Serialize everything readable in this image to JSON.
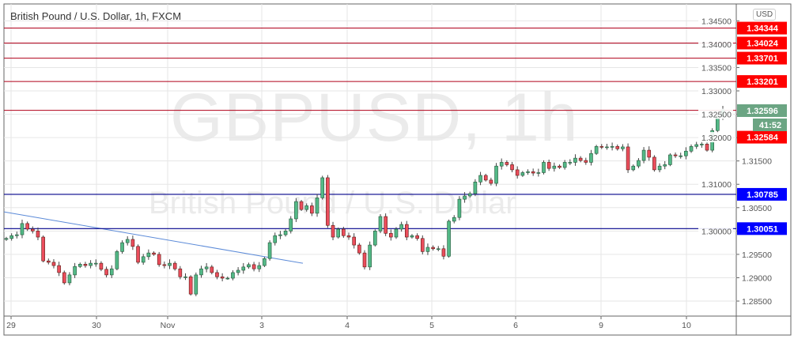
{
  "header": {
    "title": "British Pound / U.S. Dollar, 1h, FXCM",
    "currency_button": "USD"
  },
  "watermark": {
    "symbol": "GBPUSD, 1h",
    "name": "British Pound / U.S. Dollar"
  },
  "chart_data": {
    "type": "candlestick",
    "title": "British Pound / U.S. Dollar, 1h, FXCM",
    "ylim": [
      1.2835,
      1.3475
    ],
    "grid": true,
    "y_ticks": [
      "1.34500",
      "1.34000",
      "1.33500",
      "1.33000",
      "1.32500",
      "1.32000",
      "1.31500",
      "1.31000",
      "1.30500",
      "1.30000",
      "1.29500",
      "1.29000",
      "1.28500"
    ],
    "x_ticks": [
      "29",
      "30",
      "Nov",
      "3",
      "4",
      "5",
      "6",
      "9",
      "10"
    ],
    "first_open": 1.2982,
    "closes": [
      1.2984,
      1.299,
      1.2992,
      1.3016,
      1.3004,
      1.3,
      1.2987,
      1.2936,
      1.2933,
      1.2926,
      1.2911,
      1.2889,
      1.2906,
      1.2924,
      1.2929,
      1.2926,
      1.2931,
      1.2931,
      1.2918,
      1.2906,
      1.2919,
      1.2956,
      1.2975,
      1.2982,
      1.2967,
      1.2933,
      1.2945,
      1.2953,
      1.295,
      1.2928,
      1.2926,
      1.2931,
      1.2919,
      1.2902,
      1.2902,
      1.2865,
      1.2906,
      1.2919,
      1.2923,
      1.2911,
      1.2902,
      1.2899,
      1.2899,
      1.2911,
      1.2916,
      1.2923,
      1.2928,
      1.2919,
      1.2926,
      1.2941,
      1.2975,
      1.299,
      1.2992,
      1.3,
      1.3026,
      1.3063,
      1.3046,
      1.3054,
      1.3038,
      1.3071,
      1.3114,
      1.3012,
      1.2987,
      1.3004,
      1.299,
      1.2987,
      1.297,
      1.2953,
      1.2923,
      1.297,
      1.3,
      1.3031,
      1.2995,
      1.2987,
      1.3004,
      1.3014,
      1.2987,
      1.299,
      1.2984,
      1.2956,
      1.2965,
      1.2962,
      1.2962,
      1.2946,
      1.3021,
      1.3029,
      1.3068,
      1.3075,
      1.308,
      1.3105,
      1.3119,
      1.3109,
      1.3102,
      1.3139,
      1.3147,
      1.3142,
      1.3131,
      1.3119,
      1.3125,
      1.3127,
      1.3124,
      1.3125,
      1.3147,
      1.3134,
      1.3139,
      1.3136,
      1.3147,
      1.3147,
      1.3156,
      1.3151,
      1.3147,
      1.3166,
      1.3181,
      1.318,
      1.318,
      1.3181,
      1.3176,
      1.318,
      1.3131,
      1.3139,
      1.3151,
      1.3173,
      1.3158,
      1.3131,
      1.3139,
      1.3142,
      1.3163,
      1.3161,
      1.3161,
      1.3171,
      1.3181,
      1.3185,
      1.3186,
      1.3173,
      1.3215,
      1.3245,
      1.32596
    ],
    "resistance_levels": [
      1.34344,
      1.34024,
      1.33701,
      1.33201,
      1.32584
    ],
    "support_levels": [
      1.30785,
      1.30051
    ],
    "last_price": "1.32596",
    "countdown": "41:52",
    "level_labels": [
      "1.34344",
      "1.34024",
      "1.33701",
      "1.33201",
      "1.32584",
      "1.30785",
      "1.30051"
    ],
    "trendline": {
      "start": 1.3041,
      "end": 1.2931
    },
    "colors": {
      "up": "#53b987",
      "down": "#eb4d5c",
      "up_border": "#225437",
      "down_border": "#5b1a13",
      "resistance": "#ff0000",
      "support": "#0000ff",
      "last": "#6ba583",
      "trendline": "#5b8ad8"
    }
  }
}
